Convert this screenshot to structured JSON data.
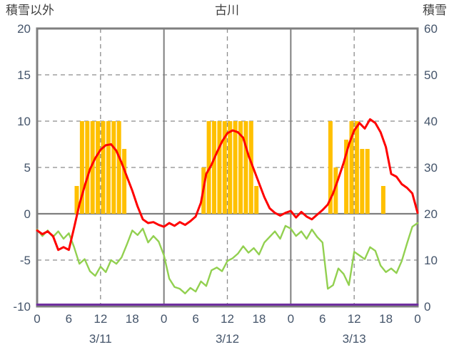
{
  "chart_data": {
    "type": "composite",
    "title": "古川",
    "background": "#FFFFFF",
    "grid_color": "#8C8C8C",
    "border_color": "#7F7F7F",
    "text_color": "#44546A",
    "left_axis": {
      "title": "積雪以外",
      "min": -10,
      "max": 20,
      "tick_labels": [
        20,
        15,
        10,
        5,
        0,
        -5,
        -10
      ],
      "dashed_grid_values": [
        15,
        10,
        5,
        -5
      ],
      "zero_line_value": 0
    },
    "right_axis": {
      "title": "積雪",
      "min": 0,
      "max": 60,
      "tick_labels": [
        60,
        50,
        40,
        30,
        20,
        10,
        0
      ]
    },
    "x_axis": {
      "total_hours": 72,
      "tick_step_hours": 6,
      "tick_labels": [
        "0",
        "6",
        "12",
        "18",
        "0",
        "6",
        "12",
        "18",
        "0",
        "6",
        "12",
        "18",
        "0"
      ],
      "day_labels": [
        "3/11",
        "3/12",
        "3/13"
      ],
      "solid_gridline_hours": [
        24,
        48
      ],
      "dashed_gridline_hours": [
        12,
        36,
        60
      ]
    },
    "series": {
      "sunshine_bars": {
        "type": "bar",
        "axis": "left",
        "color": "#FFC000",
        "hourly_values": [
          0,
          0,
          0,
          0,
          0,
          0,
          0,
          3,
          10,
          10,
          10,
          10,
          10,
          10,
          10,
          10,
          7,
          0,
          0,
          0,
          0,
          0,
          0,
          0,
          0,
          0,
          0,
          0,
          0,
          0,
          0,
          5,
          10,
          10,
          10,
          10,
          10,
          10,
          10,
          10,
          10,
          3,
          0,
          0,
          0,
          0,
          0,
          0,
          0,
          0,
          0,
          0,
          0,
          0,
          0,
          10,
          5,
          0,
          8,
          10,
          10,
          7,
          7,
          0,
          0,
          3,
          0,
          0,
          0,
          0,
          0,
          0
        ]
      },
      "temperature_red": {
        "type": "line",
        "axis": "left",
        "color": "#FF0000",
        "width": 3,
        "hourly_values": [
          -1.8,
          -2.2,
          -1.9,
          -2.4,
          -3.9,
          -3.6,
          -3.9,
          -1.5,
          1.0,
          3.0,
          4.8,
          6.0,
          6.9,
          7.4,
          7.5,
          6.8,
          5.5,
          4.0,
          2.5,
          0.8,
          -0.6,
          -1.0,
          -0.9,
          -1.2,
          -1.4,
          -1.0,
          -1.3,
          -0.9,
          -1.2,
          -0.8,
          -0.3,
          1.2,
          4.3,
          5.3,
          6.6,
          7.8,
          8.7,
          9.0,
          8.8,
          8.2,
          6.3,
          4.8,
          3.3,
          1.8,
          0.6,
          0.1,
          -0.2,
          0.1,
          0.3,
          -0.4,
          0.2,
          -0.3,
          -0.6,
          -0.1,
          0.4,
          1.0,
          2.2,
          3.8,
          5.5,
          7.5,
          9.0,
          9.8,
          9.2,
          10.2,
          9.8,
          8.8,
          7.2,
          4.3,
          4.0,
          3.2,
          2.8,
          2.2,
          0.1
        ]
      },
      "secondary_green": {
        "type": "line",
        "axis": "left",
        "color": "#92D050",
        "width": 2.4,
        "hourly_values": [
          -1.7,
          -2.4,
          -1.8,
          -2.5,
          -1.9,
          -2.7,
          -2.1,
          -3.6,
          -5.4,
          -4.9,
          -6.2,
          -6.7,
          -5.7,
          -6.3,
          -5.0,
          -5.4,
          -4.7,
          -3.3,
          -1.8,
          -2.3,
          -1.6,
          -3.1,
          -2.4,
          -3.0,
          -4.5,
          -7.0,
          -7.9,
          -8.1,
          -8.6,
          -8.0,
          -8.4,
          -7.3,
          -7.8,
          -6.1,
          -5.8,
          -6.2,
          -5.1,
          -4.8,
          -4.3,
          -3.5,
          -4.2,
          -3.7,
          -4.4,
          -3.1,
          -2.5,
          -1.9,
          -2.7,
          -1.3,
          -1.6,
          -2.4,
          -1.9,
          -2.7,
          -1.7,
          -2.5,
          -3.1,
          -8.1,
          -7.7,
          -5.9,
          -6.5,
          -7.7,
          -4.1,
          -4.5,
          -4.9,
          -3.6,
          -4.0,
          -5.6,
          -6.3,
          -5.9,
          -6.4,
          -5.1,
          -3.2,
          -1.4,
          -1.0
        ]
      },
      "snow_depth_purple": {
        "type": "line",
        "axis": "right",
        "color": "#7030A0",
        "width": 3,
        "x_hours": [
          0,
          72
        ],
        "values": [
          0,
          0
        ]
      }
    }
  }
}
